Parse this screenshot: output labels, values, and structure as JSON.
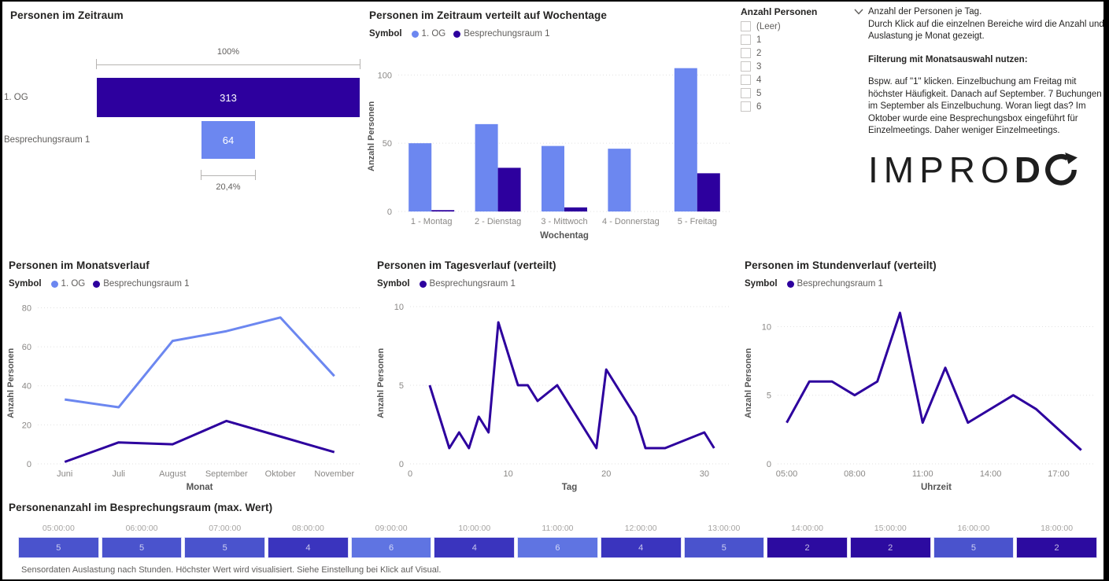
{
  "colors": {
    "dark_indigo": "#2D009E",
    "light_blue": "#6C87F0",
    "title_text": "#252423",
    "muted_text": "#605E5C"
  },
  "slicer": {
    "title": "Anzahl Personen",
    "items": [
      "(Leer)",
      "1",
      "2",
      "3",
      "4",
      "5",
      "6"
    ]
  },
  "info": {
    "line1": "Anzahl der Personen je Tag.",
    "line2": "Durch Klick auf die einzelnen Bereiche wird die Anzahl und Auslastung je Monat gezeigt.",
    "heading": "Filterung mit Monatsauswahl nutzen:",
    "body": "Bspw. auf \"1\" klicken. Einzelbuchung am Freitag mit höchster Häufigkeit. Danach auf September. 7 Buchungen im September als Einzelbuchung. Woran liegt das? Im Oktober wurde eine Besprechungsbox eingeführt für Einzelmeetings. Daher weniger Einzelmeetings."
  },
  "logo": {
    "text_thin": "IMPRO",
    "text_bold": "D",
    "symbol": "circular-arrow-o"
  },
  "chart_data": [
    {
      "type": "bar",
      "variant": "funnel-horizontal",
      "title": "Personen im Zeitraum",
      "categories": [
        "1. OG",
        "Besprechungsraum 1"
      ],
      "values": [
        313,
        64
      ],
      "percent_labels": [
        "100%",
        "20,4%"
      ],
      "colors": [
        "#2D009E",
        "#6C87F0"
      ]
    },
    {
      "type": "bar",
      "title": "Personen im Zeitraum verteilt auf Wochentage",
      "legend_title": "Symbol",
      "categories": [
        "1 - Montag",
        "2 - Dienstag",
        "3 - Mittwoch",
        "4 - Donnerstag",
        "5 - Freitag"
      ],
      "series": [
        {
          "name": "1. OG",
          "color": "#6C87F0",
          "values": [
            50,
            64,
            48,
            46,
            105
          ]
        },
        {
          "name": "Besprechungsraum 1",
          "color": "#2D009E",
          "values": [
            1,
            32,
            3,
            0,
            28
          ]
        }
      ],
      "xlabel": "Wochentag",
      "ylabel": "Anzahl Personen",
      "ylim": [
        0,
        110
      ],
      "yticks": [
        0,
        50,
        100
      ],
      "grid": "dotted"
    },
    {
      "type": "line",
      "title": "Personen im Monatsverlauf",
      "legend_title": "Symbol",
      "categories": [
        "Juni",
        "Juli",
        "August",
        "September",
        "Oktober",
        "November"
      ],
      "series": [
        {
          "name": "1. OG",
          "color": "#6C87F0",
          "values": [
            33,
            29,
            63,
            68,
            75,
            45
          ]
        },
        {
          "name": "Besprechungsraum 1",
          "color": "#2D009E",
          "values": [
            1,
            11,
            10,
            22,
            14,
            6
          ]
        }
      ],
      "xlabel": "Monat",
      "ylabel": "Anzahl Personen",
      "ylim": [
        0,
        83
      ],
      "yticks": [
        0,
        20,
        40,
        60,
        80
      ],
      "grid": "dotted"
    },
    {
      "type": "line",
      "title": "Personen im Tagesverlauf (verteilt)",
      "legend_title": "Symbol",
      "series": [
        {
          "name": "Besprechungsraum 1",
          "color": "#2D009E",
          "points": [
            [
              2,
              5
            ],
            [
              4,
              1
            ],
            [
              5,
              2
            ],
            [
              6,
              1
            ],
            [
              7,
              3
            ],
            [
              8,
              2
            ],
            [
              9,
              9
            ],
            [
              11,
              5
            ],
            [
              12,
              5
            ],
            [
              13,
              4
            ],
            [
              15,
              5
            ],
            [
              19,
              1
            ],
            [
              20,
              6
            ],
            [
              23,
              3
            ],
            [
              24,
              1
            ],
            [
              26,
              1
            ],
            [
              30,
              2
            ],
            [
              31,
              1
            ]
          ]
        }
      ],
      "xlabel": "Tag",
      "ylabel": "Anzahl Personen",
      "xlim": [
        0,
        32.5
      ],
      "xtick_values": [
        0,
        10,
        20,
        30
      ],
      "xtick_labels": [
        "0",
        "10",
        "20",
        "30"
      ],
      "ylim": [
        0,
        10.3
      ],
      "yticks": [
        0,
        5,
        10
      ],
      "grid": "dotted"
    },
    {
      "type": "line",
      "title": "Personen im Stundenverlauf (verteilt)",
      "legend_title": "Symbol",
      "series": [
        {
          "name": "Besprechungsraum 1",
          "color": "#2D009E",
          "points": [
            [
              5,
              3
            ],
            [
              6,
              6
            ],
            [
              7,
              6
            ],
            [
              8,
              5
            ],
            [
              9,
              6
            ],
            [
              10,
              11
            ],
            [
              11,
              3
            ],
            [
              12,
              7
            ],
            [
              13,
              3
            ],
            [
              15,
              5
            ],
            [
              16,
              4
            ],
            [
              18,
              1
            ]
          ]
        }
      ],
      "xlabel": "Uhrzeit",
      "ylabel": "Anzahl Personen",
      "xlim": [
        4.6,
        18.6
      ],
      "xtick_values": [
        5,
        8,
        11,
        14,
        17
      ],
      "xtick_labels": [
        "05:00",
        "08:00",
        "11:00",
        "14:00",
        "17:00"
      ],
      "ylim": [
        0,
        11.8
      ],
      "yticks": [
        0,
        5,
        10
      ],
      "grid": "dotted"
    },
    {
      "type": "heatmap",
      "variant": "single-row-matrix",
      "title": "Personenanzahl im Besprechungsraum (max. Wert)",
      "columns": [
        "05:00:00",
        "06:00:00",
        "07:00:00",
        "08:00:00",
        "09:00:00",
        "10:00:00",
        "11:00:00",
        "12:00:00",
        "13:00:00",
        "14:00:00",
        "15:00:00",
        "16:00:00",
        "18:00:00"
      ],
      "values": [
        5,
        5,
        5,
        4,
        6,
        4,
        6,
        4,
        5,
        2,
        2,
        5,
        2
      ],
      "value_colors": {
        "2": "#2C0BA0",
        "4": "#3A34BE",
        "5": "#4A53CD",
        "6": "#5F74E2"
      },
      "footnote": "Sensordaten Auslastung nach Stunden. Höchster Wert wird visualisiert. Siehe Einstellung bei Klick auf Visual."
    }
  ]
}
